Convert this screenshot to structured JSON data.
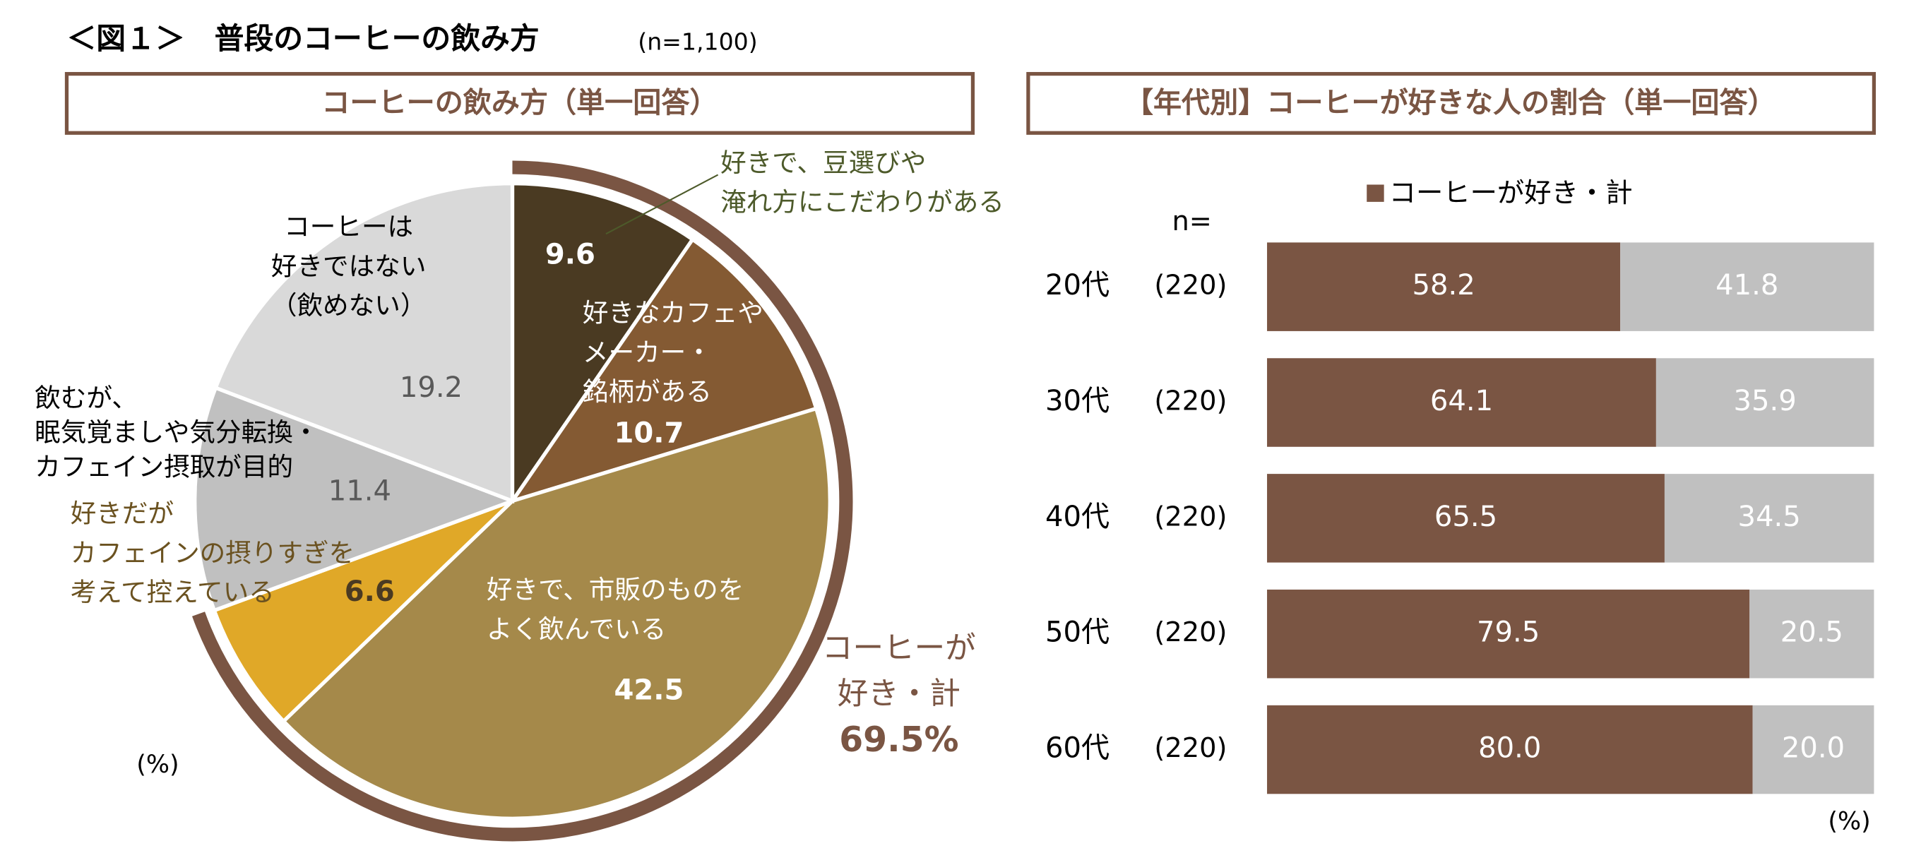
{
  "header": {
    "title": "＜図１＞　普段のコーヒーの飲み方",
    "note": "(n=1,100)"
  },
  "chart_data": [
    {
      "type": "pie",
      "title": "コーヒーの飲み方（単一回答）",
      "categories": [
        "好きで、豆選びや\n淹れ方にこだわりがある",
        "好きなカフェや\nメーカー・\n銘柄がある",
        "好きで、市販のものを\nよく飲んでいる",
        "好きだが\nカフェインの摂りすぎを\n考えて控えている",
        "飲むが、\n眠気覚ましや気分転換・\nカフェイン摂取が目的",
        "コーヒーは\n好きではない\n（飲めない）"
      ],
      "values": [
        9.6,
        10.7,
        42.5,
        6.6,
        11.4,
        19.2
      ],
      "colors": [
        "#4a3a22",
        "#845a33",
        "#a5894a",
        "#e0a828",
        "#c0c0c0",
        "#d9d9d9"
      ],
      "unit": "(%)",
      "total": {
        "label": "コーヒーが\n好き・計",
        "value": 69.5,
        "value_label": "69.5%",
        "color": "#7a5543"
      }
    },
    {
      "type": "bar",
      "orientation": "horizontal",
      "stacked": true,
      "title": "【年代別】コーヒーが好きな人の割合（単一回答）",
      "categories": [
        "20代",
        "30代",
        "40代",
        "50代",
        "60代"
      ],
      "n_title": "n=",
      "n_labels": [
        "(220)",
        "(220)",
        "(220)",
        "(220)",
        "(220)"
      ],
      "xlim": [
        0,
        100
      ],
      "unit": "(%)",
      "series": [
        {
          "name": "コーヒーが好き・計",
          "color": "#7a5543",
          "values": [
            58.2,
            64.1,
            65.5,
            79.5,
            80.0
          ],
          "value_labels": [
            "58.2",
            "64.1",
            "65.5",
            "79.5",
            "80.0"
          ]
        },
        {
          "color": "#c0c0c0",
          "values": [
            41.8,
            35.9,
            34.5,
            20.5,
            20.0
          ],
          "value_labels": [
            "41.8",
            "35.9",
            "34.5",
            "20.5",
            "20.0"
          ]
        }
      ]
    }
  ]
}
